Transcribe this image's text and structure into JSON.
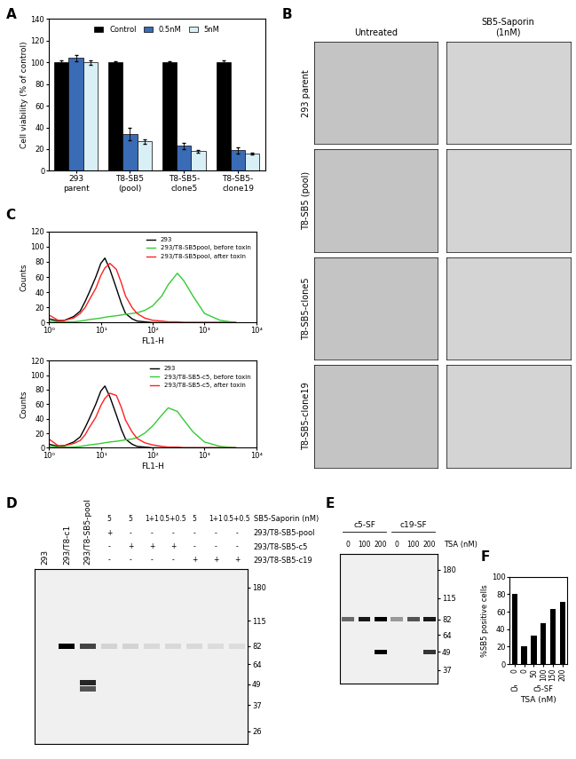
{
  "chart_data": [
    {
      "panel": "A",
      "type": "bar",
      "categories": [
        "293\nparent",
        "T8-SB5\n(pool)",
        "T8-SB5-\nclone5",
        "T8-SB5-\nclone19"
      ],
      "y_label": "Cell viability (% of control)",
      "ylim": [
        0,
        140
      ],
      "yticks": [
        0,
        20,
        40,
        60,
        80,
        100,
        120,
        140
      ],
      "legend": "upper center",
      "series": [
        {
          "name": "Control",
          "color": "#000000",
          "values": [
            100,
            100,
            100,
            100
          ],
          "errors": [
            2,
            1,
            1,
            2
          ]
        },
        {
          "name": "0.5nM",
          "color": "#3a6bb5",
          "values": [
            104,
            34,
            23,
            19
          ],
          "errors": [
            3,
            6,
            3,
            3
          ]
        },
        {
          "name": "5nM",
          "color": "#d9eff6",
          "values": [
            100,
            27,
            18,
            16
          ],
          "errors": [
            2,
            2,
            1,
            1
          ]
        }
      ]
    },
    {
      "panel": "C",
      "type": "line",
      "x": [
        1,
        1.5,
        2,
        3,
        4,
        5,
        6,
        8,
        10,
        12,
        15,
        20,
        25,
        30,
        40,
        50,
        70,
        100,
        150,
        200,
        300,
        400,
        600,
        1000,
        2000,
        4000
      ],
      "x_label": "FL1-H",
      "y_label": "Counts",
      "log": "x",
      "xlim": [
        1,
        10000
      ],
      "xticks": [
        {
          "value": 1,
          "label": "10⁰"
        },
        {
          "value": 10,
          "label": "10¹"
        },
        {
          "value": 100,
          "label": "10²"
        },
        {
          "value": 1000,
          "label": "10³"
        },
        {
          "value": 10000,
          "label": "10⁴"
        }
      ],
      "ylim": [
        0,
        120
      ],
      "yticks": [
        0,
        20,
        40,
        60,
        80,
        100,
        120
      ],
      "legend": "upper right",
      "series": [
        {
          "name": "293",
          "color": "#000000",
          "values": [
            5,
            2,
            3,
            8,
            15,
            28,
            40,
            60,
            78,
            85,
            70,
            45,
            25,
            12,
            5,
            2,
            1,
            0,
            0,
            0,
            0,
            0,
            0,
            0,
            0,
            0
          ]
        },
        {
          "name": "293/T8-SB5pool, before toxin",
          "color": "#33cc33",
          "values": [
            2,
            1,
            1,
            1,
            2,
            3,
            4,
            5,
            6,
            7,
            8,
            9,
            10,
            11,
            12,
            13,
            16,
            22,
            35,
            50,
            65,
            55,
            35,
            12,
            3,
            0
          ]
        },
        {
          "name": "293/T8-SB5pool, after toxin",
          "color": "#ff2020",
          "values": [
            10,
            3,
            3,
            6,
            12,
            20,
            30,
            45,
            62,
            72,
            78,
            70,
            52,
            35,
            20,
            12,
            6,
            3,
            2,
            1,
            1,
            0,
            0,
            0,
            0,
            0
          ]
        }
      ]
    },
    {
      "type": "line",
      "x": [
        1,
        1.5,
        2,
        3,
        4,
        5,
        6,
        8,
        10,
        12,
        15,
        20,
        25,
        30,
        40,
        50,
        70,
        100,
        150,
        200,
        300,
        400,
        600,
        1000,
        2000,
        4000
      ],
      "x_label": "FL1-H",
      "y_label": "Counts",
      "log": "x",
      "xlim": [
        1,
        10000
      ],
      "xticks": [
        {
          "value": 1,
          "label": "10⁰"
        },
        {
          "value": 10,
          "label": "10¹"
        },
        {
          "value": 100,
          "label": "10²"
        },
        {
          "value": 1000,
          "label": "10³"
        },
        {
          "value": 10000,
          "label": "10⁴"
        }
      ],
      "ylim": [
        0,
        120
      ],
      "yticks": [
        0,
        20,
        40,
        60,
        80,
        100,
        120
      ],
      "legend": "upper right",
      "series": [
        {
          "name": "293",
          "color": "#000000",
          "values": [
            5,
            2,
            3,
            8,
            15,
            28,
            40,
            60,
            78,
            85,
            70,
            45,
            25,
            12,
            5,
            2,
            1,
            0,
            0,
            0,
            0,
            0,
            0,
            0,
            0,
            0
          ]
        },
        {
          "name": "293/T8-SB5-c5, before toxin",
          "color": "#33cc33",
          "values": [
            2,
            1,
            1,
            1,
            2,
            3,
            4,
            5,
            6,
            7,
            8,
            9,
            10,
            11,
            12,
            14,
            20,
            30,
            45,
            55,
            50,
            38,
            22,
            8,
            2,
            0
          ]
        },
        {
          "name": "293/T8-SB5-c5, after toxin",
          "color": "#ff2020",
          "values": [
            12,
            3,
            3,
            6,
            10,
            18,
            28,
            42,
            58,
            68,
            75,
            72,
            55,
            38,
            22,
            13,
            7,
            4,
            2,
            1,
            1,
            0,
            0,
            0,
            0,
            0
          ]
        }
      ]
    },
    {
      "panel": "F",
      "type": "bar",
      "categories": [
        "0",
        "0",
        "50",
        "100",
        "150",
        "200"
      ],
      "groups": [
        {
          "label": "c5",
          "size": 1
        },
        {
          "label": "c5-SF",
          "size": 5
        }
      ],
      "x_label": "TSA (nM)",
      "y_label": "%SB5 positive cells",
      "ylim": [
        0,
        100
      ],
      "yticks": [
        0,
        20,
        40,
        60,
        80,
        100
      ],
      "values": [
        80,
        20,
        33,
        47,
        63,
        71
      ],
      "color": "#000000"
    }
  ],
  "panel_B": {
    "panel": "B",
    "column_labels": [
      "Untreated",
      "SB5-Saporin\n(1nM)"
    ],
    "row_labels": [
      "293 parent",
      "T8-SB5 (pool)",
      "T8-SB5-clone5",
      "T8-SB5-clone19"
    ]
  },
  "panel_D": {
    "panel": "D",
    "lane_labels": [
      "293",
      "293/T8-c1",
      "293/T8-SB5-pool",
      null,
      null,
      null,
      null,
      null,
      null,
      null
    ],
    "treatment_rows": [
      {
        "label": "SB5-Saporin (nM)",
        "values": [
          null,
          null,
          null,
          "5",
          "5",
          "1+1",
          "0.5+0.5",
          "5",
          "1+1",
          "0.5+0.5"
        ]
      },
      {
        "label": "293/T8-SB5-pool",
        "values": [
          null,
          null,
          null,
          "+",
          "-",
          "-",
          "-",
          "-",
          "-",
          "-"
        ]
      },
      {
        "label": "293/T8-SB5-c5",
        "values": [
          null,
          null,
          null,
          "-",
          "+",
          "+",
          "+",
          "-",
          "-",
          "-"
        ]
      },
      {
        "label": "293/T8-SB5-c19",
        "values": [
          null,
          null,
          null,
          "-",
          "-",
          "-",
          "-",
          "+",
          "+",
          "+"
        ]
      }
    ],
    "log": "y",
    "ylim": [
      22,
      230
    ],
    "tick_labels": "y",
    "markers": [
      180,
      115,
      82,
      64,
      49,
      37,
      26
    ],
    "bands": [
      {
        "lane": 1,
        "kda": 82,
        "intensity": 1.0
      },
      {
        "lane": 2,
        "kda": 82,
        "intensity": 0.75
      },
      {
        "lane": 2,
        "kda": 50,
        "intensity": 0.85
      },
      {
        "lane": 2,
        "kda": 46,
        "intensity": 0.7
      },
      {
        "lane": 3,
        "kda": 82,
        "intensity": 0.15
      },
      {
        "lane": 4,
        "kda": 82,
        "intensity": 0.15
      },
      {
        "lane": 5,
        "kda": 82,
        "intensity": 0.12
      },
      {
        "lane": 6,
        "kda": 82,
        "intensity": 0.12
      },
      {
        "lane": 7,
        "kda": 82,
        "intensity": 0.12
      },
      {
        "lane": 8,
        "kda": 82,
        "intensity": 0.1
      },
      {
        "lane": 9,
        "kda": 82,
        "intensity": 0.1
      }
    ]
  },
  "panel_E": {
    "panel": "E",
    "lane_groups": [
      {
        "label": "c5-SF",
        "size": 3
      },
      {
        "label": "c19-SF",
        "size": 3
      }
    ],
    "treatment_row": {
      "label": "TSA (nM)",
      "values": [
        "0",
        "100",
        "200",
        "0",
        "100",
        "200"
      ]
    },
    "log": "y",
    "ylim": [
      30,
      230
    ],
    "tick_labels": "y",
    "markers": [
      180,
      115,
      82,
      64,
      49,
      37
    ],
    "bands": [
      {
        "lane": 0,
        "kda": 82,
        "intensity": 0.6
      },
      {
        "lane": 1,
        "kda": 82,
        "intensity": 0.9
      },
      {
        "lane": 2,
        "kda": 82,
        "intensity": 1.0
      },
      {
        "lane": 2,
        "kda": 49,
        "intensity": 1.0
      },
      {
        "lane": 3,
        "kda": 82,
        "intensity": 0.4
      },
      {
        "lane": 4,
        "kda": 82,
        "intensity": 0.7
      },
      {
        "lane": 5,
        "kda": 82,
        "intensity": 0.9
      },
      {
        "lane": 5,
        "kda": 49,
        "intensity": 0.8
      }
    ]
  }
}
